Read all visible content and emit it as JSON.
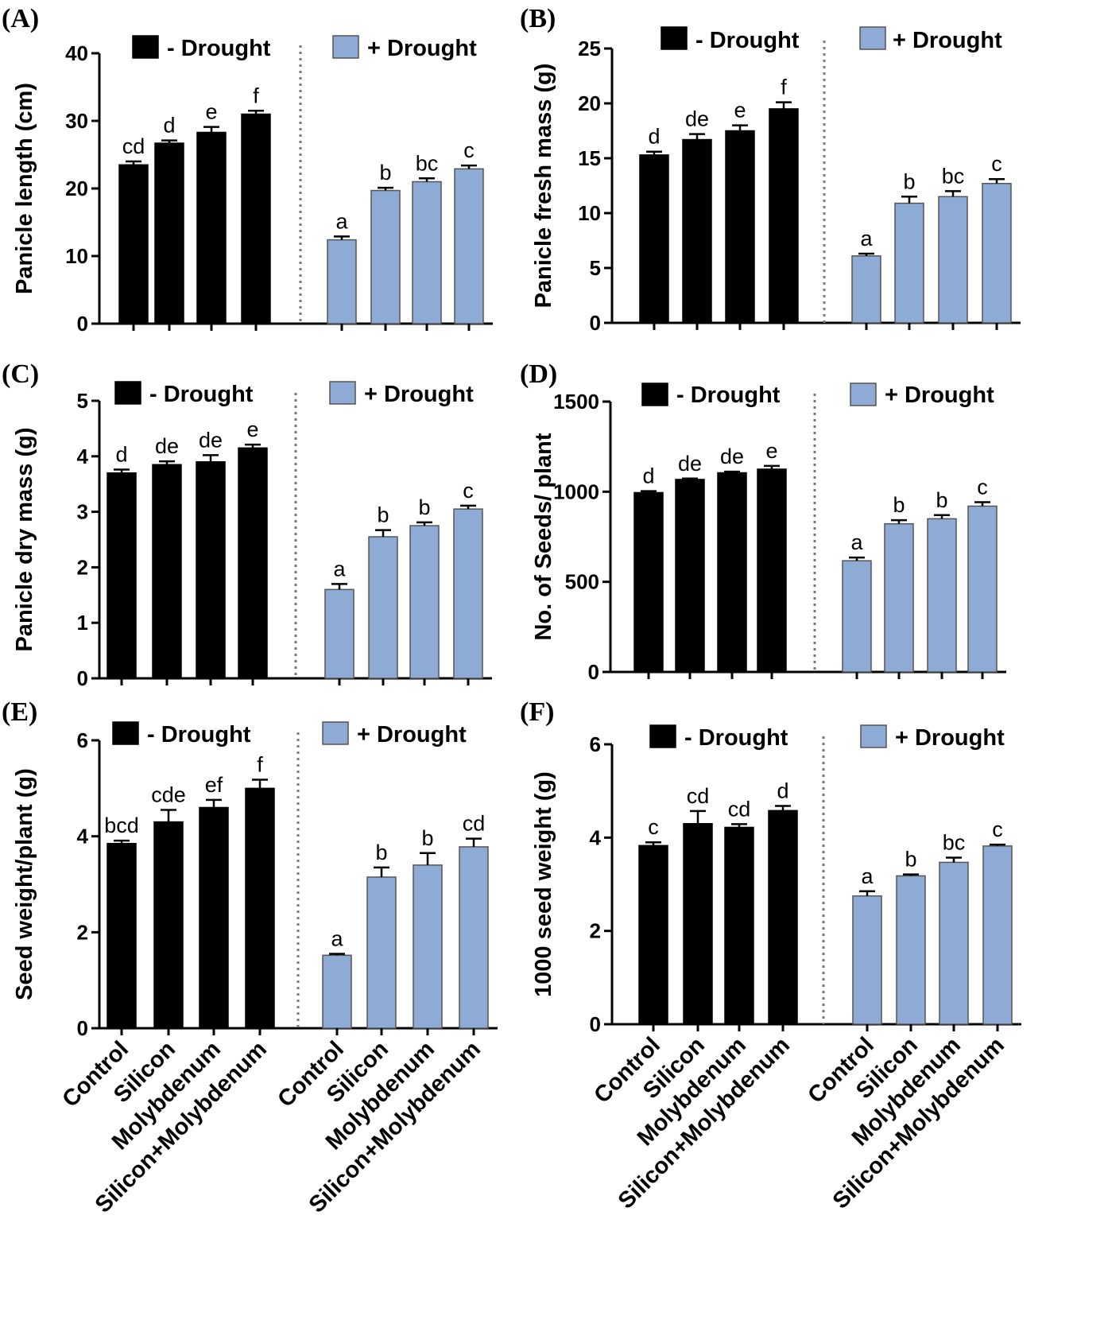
{
  "figure": {
    "categories": [
      "Control",
      "Silicon",
      "Molybdenum",
      "Silicon+Molybdenum"
    ],
    "groups": [
      "- Drought",
      "+ Drought"
    ],
    "colors": {
      "no_drought": "#000000",
      "drought": "#8eabd6",
      "drought_edge": "#555555"
    }
  },
  "chart_data": [
    {
      "panel": "(A)",
      "type": "bar",
      "ylabel": "Panicle length (cm)",
      "ylim": [
        0,
        40
      ],
      "yticks": [
        0,
        10,
        20,
        30,
        40
      ],
      "show_xlabels": false,
      "categories": [
        "Control",
        "Silicon",
        "Molybdenum",
        "Silicon+Molybdenum"
      ],
      "series": [
        {
          "name": "- Drought",
          "values": [
            23.5,
            26.7,
            28.3,
            31.0
          ],
          "errors": [
            0.5,
            0.4,
            0.8,
            0.5
          ],
          "letters": [
            "cd",
            "d",
            "e",
            "f"
          ]
        },
        {
          "name": "+ Drought",
          "values": [
            12.4,
            19.7,
            21.0,
            22.9
          ],
          "errors": [
            0.5,
            0.4,
            0.5,
            0.5
          ],
          "letters": [
            "a",
            "b",
            "bc",
            "c"
          ]
        }
      ]
    },
    {
      "panel": "(B)",
      "type": "bar",
      "ylabel": "Panicle fresh mass (g)",
      "ylim": [
        0,
        25
      ],
      "yticks": [
        0,
        5,
        10,
        15,
        20,
        25
      ],
      "show_xlabels": false,
      "categories": [
        "Control",
        "Silicon",
        "Molybdenum",
        "Silicon+Molybdenum"
      ],
      "series": [
        {
          "name": "- Drought",
          "values": [
            15.3,
            16.7,
            17.5,
            19.5
          ],
          "errors": [
            0.3,
            0.5,
            0.5,
            0.6
          ],
          "letters": [
            "d",
            "de",
            "e",
            "f"
          ]
        },
        {
          "name": "+ Drought",
          "values": [
            6.1,
            10.9,
            11.5,
            12.7
          ],
          "errors": [
            0.2,
            0.6,
            0.5,
            0.4
          ],
          "letters": [
            "a",
            "b",
            "bc",
            "c"
          ]
        }
      ]
    },
    {
      "panel": "(C)",
      "type": "bar",
      "ylabel": "Panicle dry mass (g)",
      "ylim": [
        0,
        5
      ],
      "yticks": [
        0,
        1,
        2,
        3,
        4,
        5
      ],
      "show_xlabels": false,
      "categories": [
        "Control",
        "Silicon",
        "Molybdenum",
        "Silicon+Molybdenum"
      ],
      "series": [
        {
          "name": "- Drought",
          "values": [
            3.7,
            3.85,
            3.9,
            4.15
          ],
          "errors": [
            0.06,
            0.06,
            0.12,
            0.06
          ],
          "letters": [
            "d",
            "de",
            "de",
            "e"
          ]
        },
        {
          "name": "+ Drought",
          "values": [
            1.6,
            2.55,
            2.75,
            3.05
          ],
          "errors": [
            0.1,
            0.12,
            0.06,
            0.06
          ],
          "letters": [
            "a",
            "b",
            "b",
            "c"
          ]
        }
      ]
    },
    {
      "panel": "(D)",
      "type": "bar",
      "ylabel": "No. of Seeds/ plant",
      "ylim": [
        0,
        1500
      ],
      "yticks": [
        0,
        500,
        1000,
        1500
      ],
      "show_xlabels": false,
      "categories": [
        "Control",
        "Silicon",
        "Molybdenum",
        "Silicon+Molybdenum"
      ],
      "series": [
        {
          "name": "- Drought",
          "values": [
            995,
            1068,
            1105,
            1125
          ],
          "errors": [
            8,
            5,
            6,
            18
          ],
          "letters": [
            "d",
            "de",
            "de",
            "e"
          ]
        },
        {
          "name": "+ Drought",
          "values": [
            617,
            822,
            850,
            920
          ],
          "errors": [
            18,
            20,
            20,
            22
          ],
          "letters": [
            "a",
            "b",
            "b",
            "c"
          ]
        }
      ]
    },
    {
      "panel": "(E)",
      "type": "bar",
      "ylabel": "Seed weight/plant (g)",
      "ylim": [
        0,
        6
      ],
      "yticks": [
        0,
        2,
        4,
        6
      ],
      "show_xlabels": true,
      "categories": [
        "Control",
        "Silicon",
        "Molybdenum",
        "Silicon+Molybdenum"
      ],
      "series": [
        {
          "name": "- Drought",
          "values": [
            3.85,
            4.3,
            4.6,
            5.0
          ],
          "errors": [
            0.06,
            0.25,
            0.16,
            0.18
          ],
          "letters": [
            "bcd",
            "cde",
            "ef",
            "f"
          ]
        },
        {
          "name": "+ Drought",
          "values": [
            1.52,
            3.15,
            3.4,
            3.78
          ],
          "errors": [
            0.03,
            0.2,
            0.25,
            0.17
          ],
          "letters": [
            "a",
            "b",
            "b",
            "cd"
          ]
        }
      ]
    },
    {
      "panel": "(F)",
      "type": "bar",
      "ylabel": "1000 seed weight (g)",
      "ylim": [
        0,
        6
      ],
      "yticks": [
        0,
        2,
        4,
        6
      ],
      "show_xlabels": true,
      "categories": [
        "Control",
        "Silicon",
        "Molybdenum",
        "Silicon+Molybdenum"
      ],
      "series": [
        {
          "name": "- Drought",
          "values": [
            3.83,
            4.3,
            4.22,
            4.58
          ],
          "errors": [
            0.07,
            0.27,
            0.07,
            0.1
          ],
          "letters": [
            "c",
            "cd",
            "cd",
            "d"
          ]
        },
        {
          "name": "+ Drought",
          "values": [
            2.75,
            3.18,
            3.47,
            3.82
          ],
          "errors": [
            0.1,
            0.03,
            0.1,
            0.03
          ],
          "letters": [
            "a",
            "b",
            "bc",
            "c"
          ]
        }
      ]
    }
  ]
}
